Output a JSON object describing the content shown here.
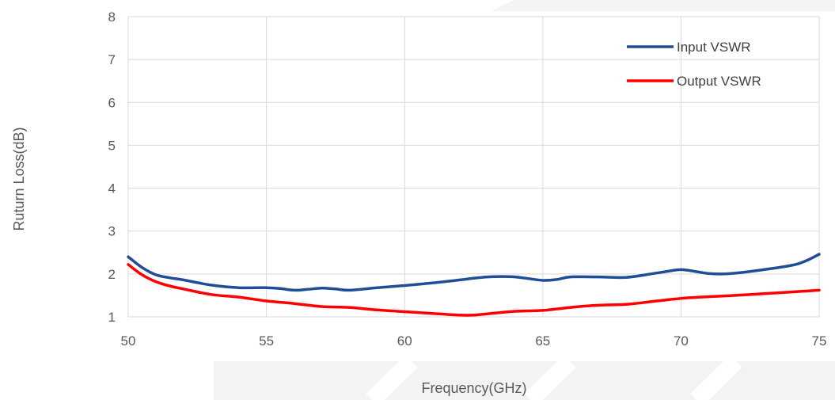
{
  "chart_data": {
    "type": "line",
    "title": "",
    "xlabel": "Frequency(GHz)",
    "ylabel": "Ruturn Loss(dB)",
    "xlim": [
      50,
      75
    ],
    "ylim": [
      1,
      8
    ],
    "xticks": [
      "50",
      "55",
      "60",
      "65",
      "70",
      "75"
    ],
    "yticks": [
      "1",
      "2",
      "3",
      "4",
      "5",
      "6",
      "7",
      "8"
    ],
    "grid": true,
    "legend_position": "top-right",
    "series": [
      {
        "name": "Input VSWR",
        "color": "#1f4e96",
        "x": [
          50,
          50.5,
          51,
          51.5,
          52,
          53,
          54,
          55,
          55.5,
          56,
          56.5,
          57,
          57.5,
          58,
          59,
          60,
          61,
          62,
          62.5,
          63,
          63.5,
          64,
          64.5,
          65,
          65.5,
          66,
          67,
          68,
          69,
          69.5,
          70,
          70.5,
          71,
          71.5,
          72,
          73,
          74,
          74.5,
          75
        ],
        "y": [
          2.4,
          2.15,
          1.98,
          1.91,
          1.86,
          1.74,
          1.68,
          1.68,
          1.66,
          1.62,
          1.64,
          1.67,
          1.65,
          1.62,
          1.68,
          1.73,
          1.79,
          1.86,
          1.9,
          1.93,
          1.94,
          1.93,
          1.89,
          1.85,
          1.87,
          1.93,
          1.93,
          1.92,
          2.01,
          2.06,
          2.1,
          2.06,
          2.01,
          2.0,
          2.02,
          2.1,
          2.2,
          2.3,
          2.46
        ]
      },
      {
        "name": "Output VSWR",
        "color": "#ff0000",
        "x": [
          50,
          50.5,
          51,
          51.5,
          52,
          53,
          54,
          55,
          56,
          57,
          58,
          59,
          60,
          61,
          62,
          62.5,
          63,
          64,
          65,
          66,
          67,
          68,
          69,
          70,
          71,
          72,
          73,
          74,
          75
        ],
        "y": [
          2.22,
          1.98,
          1.82,
          1.72,
          1.65,
          1.52,
          1.46,
          1.37,
          1.31,
          1.24,
          1.22,
          1.16,
          1.12,
          1.08,
          1.04,
          1.04,
          1.07,
          1.13,
          1.15,
          1.22,
          1.27,
          1.29,
          1.36,
          1.43,
          1.47,
          1.5,
          1.54,
          1.58,
          1.62
        ]
      }
    ]
  }
}
